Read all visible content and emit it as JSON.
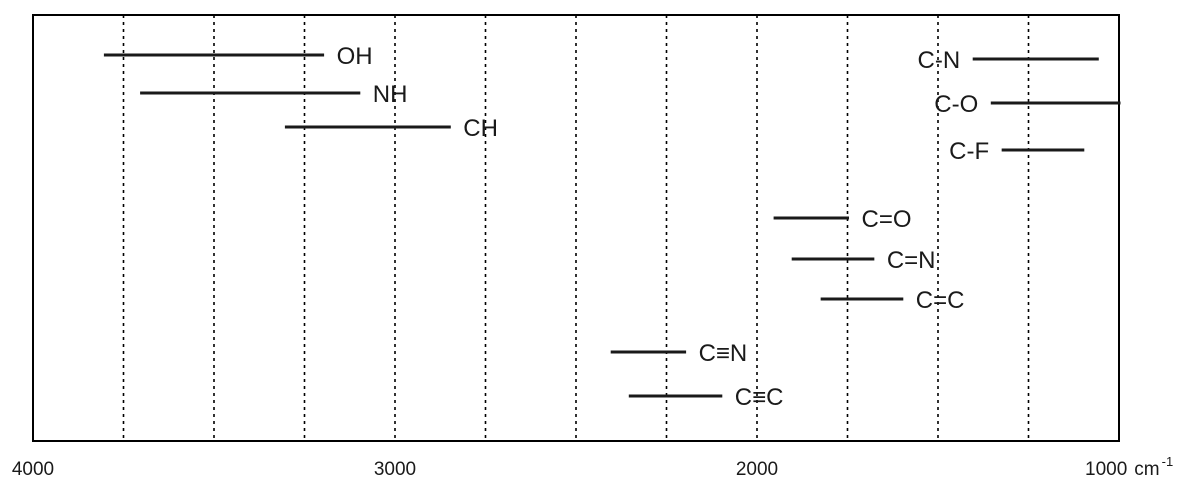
{
  "chart_data": {
    "type": "range",
    "title": "",
    "xlabel": "",
    "ylabel": "",
    "x_unit": "cm",
    "x_unit_exponent": "-1",
    "xlim": [
      4000,
      1000
    ],
    "x_reversed": true,
    "grid": "vertical-dotted",
    "tick_labels": [
      {
        "value": 4000,
        "label": "4000"
      },
      {
        "value": 3000,
        "label": "3000"
      },
      {
        "value": 2000,
        "label": "2000"
      },
      {
        "value": 1000,
        "label": "1000"
      }
    ],
    "gridlines": [
      3750,
      3500,
      3250,
      3000,
      2750,
      2500,
      2250,
      2000,
      1750,
      1500,
      1250
    ],
    "series": [
      {
        "name": "OH",
        "range": [
          3800,
          3200
        ]
      },
      {
        "name": "NH",
        "range": [
          3700,
          3100
        ]
      },
      {
        "name": "CH",
        "range": [
          3300,
          2850
        ]
      },
      {
        "name": "C≡N",
        "range": [
          2400,
          2200
        ]
      },
      {
        "name": "C≡C",
        "range": [
          2350,
          2100
        ]
      },
      {
        "name": "C=O",
        "range": [
          1950,
          1750
        ]
      },
      {
        "name": "C=N",
        "range": [
          1900,
          1680
        ]
      },
      {
        "name": "C=C",
        "range": [
          1820,
          1600
        ]
      },
      {
        "name": "C-N",
        "range": [
          1400,
          1060
        ]
      },
      {
        "name": "C-O",
        "range": [
          1350,
          1000
        ]
      },
      {
        "name": "C-F",
        "range": [
          1320,
          1100
        ]
      }
    ]
  }
}
